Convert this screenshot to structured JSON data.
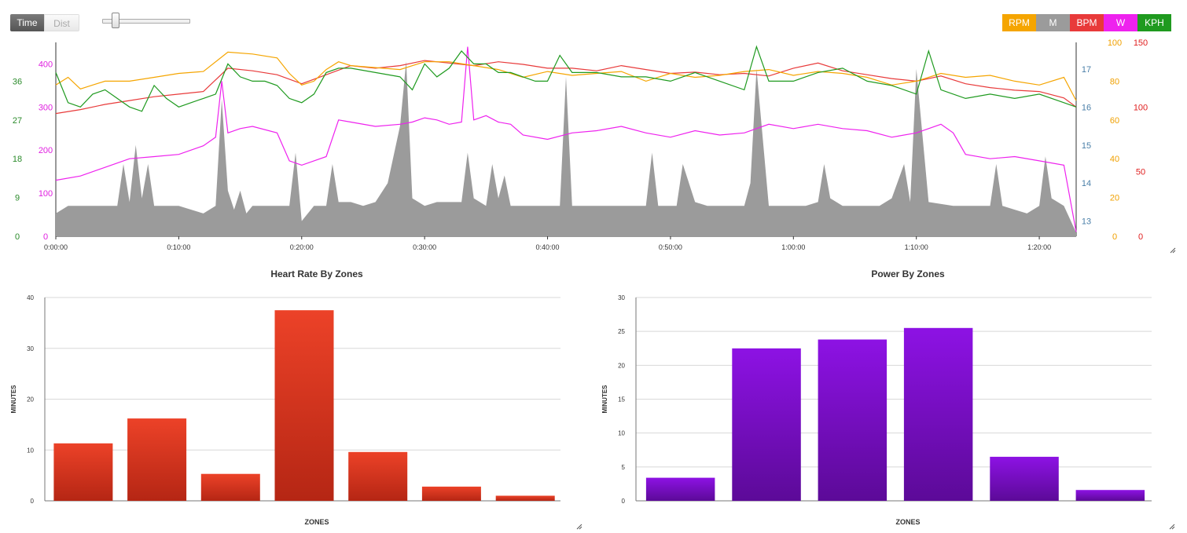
{
  "toggle": {
    "time": "Time",
    "dist": "Dist"
  },
  "slider": {
    "value": 0.12
  },
  "legend": [
    {
      "label": "RPM",
      "color": "#f5a500"
    },
    {
      "label": "M",
      "color": "#9b9b9b"
    },
    {
      "label": "BPM",
      "color": "#e83a3a"
    },
    {
      "label": "W",
      "color": "#ee22ee"
    },
    {
      "label": "KPH",
      "color": "#1f9a1f"
    }
  ],
  "chart_data": [
    {
      "type": "line",
      "x_ticks": [
        "0:00:00",
        "0:10:00",
        "0:20:00",
        "0:30:00",
        "0:40:00",
        "0:50:00",
        "1:00:00",
        "1:10:00",
        "1:20:00"
      ],
      "x_range_minutes": [
        0,
        83
      ],
      "axes": {
        "kph": {
          "ticks": [
            "0",
            "9",
            "18",
            "27",
            "36"
          ],
          "range": [
            0,
            45
          ],
          "color": "#2a8a2a"
        },
        "w": {
          "ticks": [
            "0",
            "100",
            "200",
            "300",
            "400"
          ],
          "range": [
            0,
            450
          ],
          "color": "#e020e0"
        },
        "m": {
          "ticks": [
            "13",
            "14",
            "15",
            "16",
            "17"
          ],
          "range": [
            12.6,
            17.7
          ],
          "color": "#4a7fa8"
        },
        "rpm": {
          "ticks": [
            "0",
            "20",
            "40",
            "60",
            "80",
            "100"
          ],
          "range": [
            0,
            100
          ],
          "color": "#f0a000"
        },
        "bpm": {
          "ticks": [
            "0",
            "50",
            "100",
            "150"
          ],
          "range": [
            0,
            150
          ],
          "color": "#e02020"
        }
      },
      "series": [
        {
          "name": "M",
          "color": "#9b9b9b",
          "x": [
            0,
            1,
            3,
            5,
            5.5,
            6,
            6.5,
            7,
            7.5,
            8,
            8.5,
            9,
            10,
            12,
            13,
            13.5,
            14,
            14.5,
            15,
            15.5,
            16,
            17,
            19,
            19.5,
            20,
            21,
            22,
            22.5,
            23,
            24,
            25,
            26,
            27,
            28,
            28.5,
            29,
            29.5,
            30,
            31,
            32,
            33,
            33.5,
            34,
            35,
            35.5,
            36,
            36.5,
            37,
            38,
            39,
            40,
            41,
            41.5,
            42,
            43,
            45,
            47,
            48,
            48.5,
            49,
            50,
            50.5,
            51,
            52,
            53,
            54,
            55,
            56,
            56.5,
            57,
            58,
            60,
            61,
            62,
            62.5,
            63,
            64,
            65,
            66,
            67,
            68,
            69,
            69.5,
            70,
            71,
            73,
            75,
            76,
            76.5,
            77,
            78,
            79,
            80,
            80.5,
            81,
            82,
            83
          ],
          "y": [
            13.2,
            13.4,
            13.4,
            13.4,
            14.5,
            13.5,
            15.0,
            13.6,
            14.5,
            13.4,
            13.4,
            13.4,
            13.4,
            13.2,
            13.4,
            16.2,
            13.8,
            13.3,
            13.8,
            13.2,
            13.4,
            13.4,
            13.4,
            14.8,
            13.0,
            13.4,
            13.4,
            14.5,
            13.5,
            13.5,
            13.4,
            13.5,
            14.0,
            15.5,
            17.2,
            13.6,
            13.5,
            13.4,
            13.5,
            13.5,
            13.5,
            14.8,
            13.6,
            13.4,
            14.5,
            13.6,
            14.2,
            13.4,
            13.4,
            13.4,
            13.4,
            13.4,
            16.8,
            13.4,
            13.4,
            13.4,
            13.4,
            13.4,
            14.8,
            13.4,
            13.4,
            13.4,
            14.5,
            13.5,
            13.4,
            13.4,
            13.4,
            13.4,
            14.0,
            17.0,
            13.4,
            13.4,
            13.4,
            13.5,
            14.5,
            13.6,
            13.4,
            13.4,
            13.4,
            13.4,
            13.6,
            14.5,
            13.5,
            17.0,
            13.5,
            13.4,
            13.4,
            13.4,
            14.5,
            13.4,
            13.3,
            13.2,
            13.4,
            14.7,
            13.6,
            13.4,
            12.7
          ]
        },
        {
          "name": "W",
          "color": "#ee22ee",
          "x": [
            0,
            2,
            4,
            6,
            8,
            10,
            12,
            13,
            13.5,
            14,
            15,
            16,
            18,
            19,
            20,
            21,
            22,
            23,
            24,
            26,
            28,
            29,
            30,
            31,
            32,
            33,
            33.5,
            34,
            35,
            36,
            37,
            38,
            40,
            42,
            44,
            46,
            48,
            50,
            52,
            54,
            56,
            58,
            60,
            62,
            64,
            66,
            68,
            70,
            72,
            73,
            74,
            76,
            78,
            80,
            82,
            83
          ],
          "y": [
            130,
            140,
            160,
            180,
            185,
            190,
            210,
            230,
            360,
            240,
            250,
            255,
            240,
            175,
            165,
            175,
            185,
            270,
            265,
            255,
            260,
            265,
            275,
            270,
            260,
            265,
            440,
            270,
            280,
            265,
            260,
            235,
            225,
            240,
            245,
            255,
            240,
            230,
            245,
            235,
            240,
            260,
            250,
            260,
            250,
            245,
            230,
            240,
            260,
            240,
            190,
            180,
            185,
            175,
            165,
            10
          ]
        },
        {
          "name": "BPM",
          "color": "#e83a3a",
          "x": [
            0,
            2,
            4,
            6,
            8,
            10,
            12,
            14,
            16,
            18,
            20,
            22,
            24,
            26,
            28,
            30,
            32,
            34,
            36,
            38,
            40,
            42,
            44,
            46,
            48,
            50,
            52,
            54,
            56,
            58,
            60,
            62,
            64,
            66,
            68,
            70,
            72,
            74,
            76,
            78,
            80,
            82,
            83
          ],
          "y": [
            95,
            98,
            102,
            105,
            108,
            110,
            112,
            130,
            128,
            125,
            118,
            125,
            132,
            130,
            132,
            136,
            134,
            132,
            135,
            133,
            130,
            130,
            128,
            132,
            129,
            126,
            127,
            125,
            126,
            124,
            130,
            134,
            128,
            125,
            122,
            120,
            124,
            118,
            115,
            113,
            112,
            107,
            100
          ]
        },
        {
          "name": "RPM",
          "color": "#f5a500",
          "x": [
            0,
            1,
            2,
            3,
            4,
            6,
            8,
            10,
            12,
            14,
            16,
            18,
            19,
            20,
            21,
            22,
            23,
            24,
            26,
            28,
            30,
            32,
            34,
            36,
            38,
            40,
            42,
            44,
            46,
            48,
            50,
            52,
            54,
            56,
            58,
            60,
            62,
            64,
            66,
            68,
            70,
            72,
            74,
            76,
            78,
            80,
            82,
            83
          ],
          "y": [
            78,
            82,
            76,
            78,
            80,
            80,
            82,
            84,
            85,
            95,
            94,
            92,
            84,
            78,
            80,
            86,
            90,
            88,
            87,
            86,
            90,
            90,
            88,
            86,
            82,
            85,
            83,
            84,
            85,
            80,
            84,
            82,
            83,
            85,
            86,
            83,
            85,
            84,
            82,
            78,
            80,
            84,
            82,
            83,
            80,
            78,
            82,
            70
          ]
        },
        {
          "name": "KPH",
          "color": "#1f9a1f",
          "x": [
            0,
            1,
            2,
            3,
            4,
            5,
            6,
            7,
            8,
            9,
            10,
            11,
            12,
            13,
            14,
            15,
            16,
            17,
            18,
            19,
            20,
            21,
            22,
            23,
            24,
            26,
            28,
            29,
            30,
            31,
            32,
            33,
            34,
            35,
            36,
            37,
            38,
            39,
            40,
            41,
            42,
            44,
            46,
            48,
            50,
            52,
            54,
            56,
            57,
            58,
            60,
            62,
            64,
            66,
            68,
            70,
            71,
            72,
            74,
            76,
            78,
            80,
            82,
            83
          ],
          "y": [
            38,
            31,
            30,
            33,
            34,
            32,
            30,
            29,
            35,
            32,
            30,
            31,
            32,
            33,
            40,
            37,
            36,
            36,
            35,
            32,
            31,
            33,
            38,
            39,
            39,
            38,
            37,
            34,
            40,
            37,
            39,
            43,
            40,
            40,
            38,
            38,
            37,
            36,
            36,
            42,
            38,
            38,
            37,
            37,
            36,
            38,
            36,
            34,
            44,
            36,
            36,
            38,
            39,
            36,
            35,
            33,
            43,
            34,
            32,
            33,
            32,
            33,
            31,
            30
          ]
        }
      ]
    },
    {
      "type": "bar",
      "title": "Heart Rate By Zones",
      "xlabel": "ZONES",
      "ylabel": "MINUTES",
      "ylim": [
        0,
        40
      ],
      "y_ticks": [
        0,
        10,
        20,
        30,
        40
      ],
      "values": [
        11.3,
        16.2,
        5.3,
        37.5,
        9.6,
        2.8,
        1.0
      ],
      "color": "#d83420"
    },
    {
      "type": "bar",
      "title": "Power By Zones",
      "xlabel": "ZONES",
      "ylabel": "MINUTES",
      "ylim": [
        0,
        30
      ],
      "y_ticks": [
        0,
        5,
        10,
        15,
        20,
        25,
        30
      ],
      "values": [
        3.4,
        22.5,
        23.8,
        25.5,
        6.5,
        1.6
      ],
      "color": "#7d0fd0"
    }
  ]
}
